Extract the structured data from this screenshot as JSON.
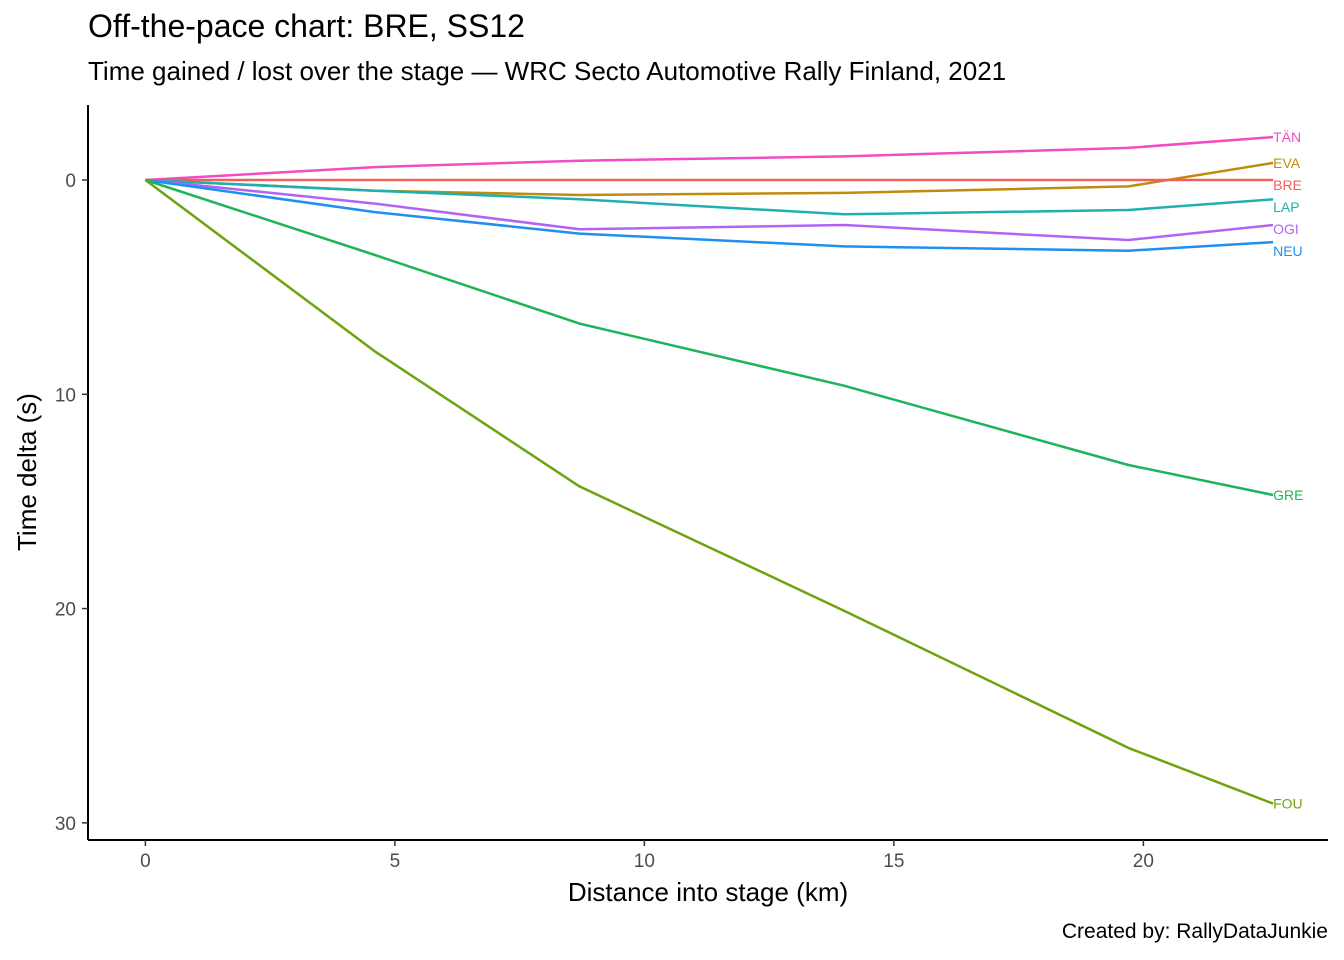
{
  "chart_data": {
    "type": "line",
    "title": "Off-the-pace chart: BRE, SS12",
    "subtitle": "Time gained / lost over the stage — WRC Secto Automotive Rally Finland, 2021",
    "caption": "Created by: RallyDataJunkie",
    "xlabel": "Distance into stage (km)",
    "ylabel": "Time delta (s)",
    "xlim": [
      -1.15,
      23.7
    ],
    "ylim": [
      -3.5,
      30.8
    ],
    "y_reversed": true,
    "x_ticks": [
      0,
      5,
      10,
      15,
      20
    ],
    "y_ticks": [
      0,
      10,
      20,
      30
    ],
    "grid": false,
    "legend": "direct labels at line ends",
    "x": [
      0,
      4.6,
      8.7,
      14.0,
      19.7,
      22.6
    ],
    "series": [
      {
        "name": "TÄN",
        "color": "#F14CC1",
        "values": [
          0,
          -0.6,
          -0.9,
          -1.1,
          -1.5,
          -2.0
        ]
      },
      {
        "name": "EVA",
        "color": "#C08B0E",
        "values": [
          0,
          0.5,
          0.7,
          0.6,
          0.3,
          -0.8
        ]
      },
      {
        "name": "BRE",
        "color": "#F0605A",
        "values": [
          0,
          0,
          0,
          0,
          0,
          0
        ]
      },
      {
        "name": "LAP",
        "color": "#1FAFAF",
        "values": [
          0,
          0.5,
          0.9,
          1.6,
          1.4,
          0.9
        ]
      },
      {
        "name": "OGI",
        "color": "#B164F4",
        "values": [
          0,
          1.1,
          2.3,
          2.1,
          2.8,
          2.1
        ]
      },
      {
        "name": "NEU",
        "color": "#1F90F0",
        "values": [
          0,
          1.5,
          2.5,
          3.1,
          3.3,
          2.9
        ]
      },
      {
        "name": "GRE",
        "color": "#1DB45A",
        "values": [
          0,
          3.5,
          6.7,
          9.6,
          13.3,
          14.7
        ]
      },
      {
        "name": "FOU",
        "color": "#6FA30E",
        "values": [
          0,
          8.0,
          14.3,
          20.1,
          26.5,
          29.1
        ]
      }
    ]
  }
}
